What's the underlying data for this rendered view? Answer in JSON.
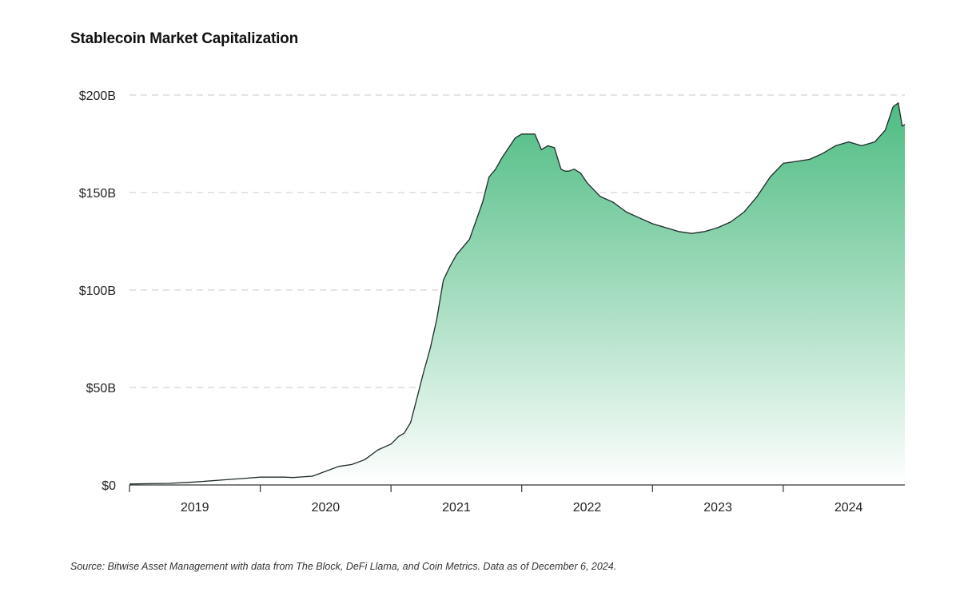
{
  "title": "Stablecoin Market Capitalization",
  "source": "Source: Bitwise Asset Management with data from The Block, DeFi Llama, and Coin Metrics. Data as of December 6, 2024.",
  "colors": {
    "line": "#1f2a2a",
    "fill_top": "#45b87c",
    "fill_bottom": "#ffffff",
    "grid": "#c8c8c8",
    "axis": "#333333"
  },
  "chart_data": {
    "type": "area",
    "title": "Stablecoin Market Capitalization",
    "xlabel": "",
    "ylabel": "",
    "unit": "USD billions",
    "xlim": [
      2019.0,
      2024.93
    ],
    "ylim": [
      0,
      200
    ],
    "grid": "horizontal-dashed",
    "y_ticks": [
      {
        "value": 0,
        "label": "$0"
      },
      {
        "value": 50,
        "label": "$50B"
      },
      {
        "value": 100,
        "label": "$100B"
      },
      {
        "value": 150,
        "label": "$150B"
      },
      {
        "value": 200,
        "label": "$200B"
      }
    ],
    "x_ticks": [
      {
        "value": 2019.5,
        "label": "2019"
      },
      {
        "value": 2020.5,
        "label": "2020"
      },
      {
        "value": 2021.5,
        "label": "2021"
      },
      {
        "value": 2022.5,
        "label": "2022"
      },
      {
        "value": 2023.5,
        "label": "2023"
      },
      {
        "value": 2024.5,
        "label": "2024"
      }
    ],
    "x_boundaries": [
      2020.0,
      2021.0,
      2022.0,
      2023.0,
      2024.0
    ],
    "series": [
      {
        "name": "Stablecoin Market Capitalization",
        "x": [
          2019.0,
          2019.1,
          2019.3,
          2019.5,
          2019.7,
          2019.9,
          2020.0,
          2020.1,
          2020.18,
          2020.25,
          2020.4,
          2020.5,
          2020.6,
          2020.7,
          2020.8,
          2020.9,
          2021.0,
          2021.03,
          2021.06,
          2021.1,
          2021.15,
          2021.2,
          2021.25,
          2021.3,
          2021.35,
          2021.4,
          2021.45,
          2021.5,
          2021.6,
          2021.7,
          2021.75,
          2021.8,
          2021.85,
          2021.9,
          2021.95,
          2022.0,
          2022.1,
          2022.15,
          2022.2,
          2022.25,
          2022.3,
          2022.33,
          2022.36,
          2022.4,
          2022.45,
          2022.5,
          2022.6,
          2022.7,
          2022.8,
          2022.9,
          2023.0,
          2023.1,
          2023.2,
          2023.3,
          2023.4,
          2023.5,
          2023.6,
          2023.7,
          2023.8,
          2023.9,
          2024.0,
          2024.1,
          2024.2,
          2024.3,
          2024.4,
          2024.5,
          2024.6,
          2024.7,
          2024.78,
          2024.84,
          2024.88,
          2024.91,
          2024.93
        ],
        "values": [
          0.5,
          0.6,
          0.8,
          1.5,
          2.5,
          3.5,
          4,
          4,
          4,
          3.8,
          4.5,
          7,
          9.5,
          10.5,
          13,
          18,
          21,
          23,
          25,
          26.5,
          32,
          45,
          58,
          70,
          85,
          105,
          112,
          118,
          126,
          145,
          158,
          162,
          168,
          173,
          178,
          180,
          180,
          172,
          174,
          173,
          162,
          161,
          161,
          162,
          160,
          155,
          148,
          145,
          140,
          137,
          134,
          132,
          130,
          129,
          130,
          132,
          135,
          140,
          148,
          158,
          165,
          166,
          167,
          170,
          174,
          176,
          174,
          176,
          182,
          194,
          196,
          184,
          185
        ]
      }
    ]
  }
}
